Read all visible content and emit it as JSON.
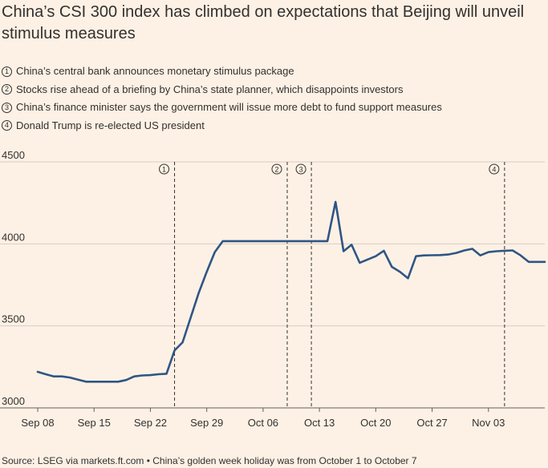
{
  "header": {
    "title": "China’s CSI 300 index has climbed on expectations that Beijing will unveil stimulus measures"
  },
  "notes": [
    {
      "marker": "1",
      "text": "China’s central bank announces monetary stimulus package"
    },
    {
      "marker": "2",
      "text": "Stocks rise ahead of a briefing by China’s state planner, which disappoints investors"
    },
    {
      "marker": "3",
      "text": "China’s finance minister says the government will issue more debt to fund support measures"
    },
    {
      "marker": "4",
      "text": "Donald Trump is re-elected US president"
    }
  ],
  "footer": {
    "source": "Source: LSEG via markets.ft.com • China’s golden week holiday was from October 1 to October 7"
  },
  "colors": {
    "background": "#fdf1e5",
    "line": "#2f5584",
    "grid": "#d9cdc2",
    "text": "#33302e"
  },
  "chart_data": {
    "type": "line",
    "title": "China’s CSI 300 index has climbed on expectations that Beijing will unveil stimulus measures",
    "xlabel": "",
    "ylabel": "",
    "ylim": [
      3000,
      4500
    ],
    "yticks": [
      3000,
      3500,
      4000,
      4500
    ],
    "grid": "horizontal",
    "x_unit": "days since Sep 08",
    "xlim": [
      0,
      63
    ],
    "xticks": [
      {
        "x": 0,
        "label": "Sep 08"
      },
      {
        "x": 7,
        "label": "Sep 15"
      },
      {
        "x": 14,
        "label": "Sep 22"
      },
      {
        "x": 21,
        "label": "Sep 29"
      },
      {
        "x": 28,
        "label": "Oct 06"
      },
      {
        "x": 35,
        "label": "Oct 13"
      },
      {
        "x": 42,
        "label": "Oct 20"
      },
      {
        "x": 49,
        "label": "Oct 27"
      },
      {
        "x": 56,
        "label": "Nov 03"
      }
    ],
    "series": [
      {
        "name": "CSI 300",
        "x": [
          0,
          1,
          2,
          3,
          4,
          5,
          6,
          7,
          8,
          9,
          10,
          11,
          12,
          13,
          14,
          15,
          16,
          17,
          18,
          19,
          20,
          21,
          22,
          23,
          24,
          25,
          26,
          27,
          28,
          29,
          30,
          31,
          32,
          33,
          34,
          35,
          36,
          37,
          38,
          39,
          40,
          41,
          42,
          43,
          44,
          45,
          46,
          47,
          48,
          49,
          50,
          51,
          52,
          53,
          54,
          55,
          56,
          57,
          58,
          59,
          60,
          61,
          62,
          63
        ],
        "values": [
          3220,
          3205,
          3192,
          3192,
          3185,
          3172,
          3160,
          3160,
          3160,
          3160,
          3160,
          3170,
          3192,
          3198,
          3200,
          3205,
          3208,
          3350,
          3400,
          3550,
          3700,
          3830,
          3950,
          4017,
          4017,
          4017,
          4017,
          4017,
          4017,
          4017,
          4017,
          4017,
          4017,
          4017,
          4017,
          4017,
          4017,
          4256,
          3955,
          3995,
          3885,
          3905,
          3925,
          3958,
          3860,
          3830,
          3790,
          3925,
          3930,
          3931,
          3932,
          3935,
          3945,
          3960,
          3970,
          3930,
          3950,
          3955,
          3958,
          3960,
          3930,
          3890,
          3890,
          3890
        ]
      }
    ],
    "events": [
      {
        "marker": "1",
        "x": 17
      },
      {
        "marker": "2",
        "x": 31
      },
      {
        "marker": "3",
        "x": 34
      },
      {
        "marker": "4",
        "x": 58
      }
    ]
  }
}
